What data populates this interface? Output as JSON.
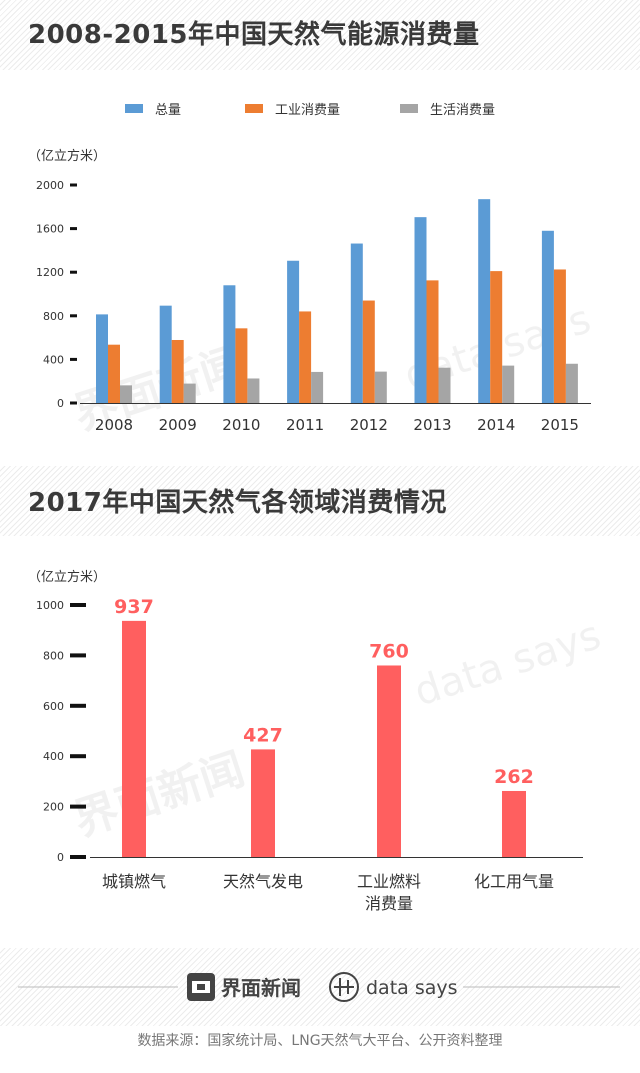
{
  "chart1_title": "2008-2015年中国天然气能源消费量",
  "chart2_title": "2017年中国天然气各领域消费情况",
  "watermark": {
    "jiemian": "界面新闻",
    "datasays": "data says"
  },
  "footer": {
    "logo": "界面新闻",
    "datasays": "data says"
  },
  "source": "数据来源：国家统计局、LNG天然气大平台、公开资料整理",
  "colors": {
    "total": "#5b9bd5",
    "industrial": "#ed7d31",
    "residential": "#a5a5a5",
    "sector": "#ff5f5f"
  },
  "chart_data": [
    {
      "type": "bar",
      "title": "2008-2015年中国天然气能源消费量",
      "ylabel": "（亿立方米）",
      "categories": [
        "2008",
        "2009",
        "2010",
        "2011",
        "2012",
        "2013",
        "2014",
        "2015"
      ],
      "series": [
        {
          "name": "总量",
          "values": [
            813,
            893,
            1080,
            1305,
            1463,
            1705,
            1870,
            1580
          ]
        },
        {
          "name": "工业消费量",
          "values": [
            535,
            578,
            685,
            840,
            940,
            1125,
            1210,
            1225
          ]
        },
        {
          "name": "生活消费量",
          "values": [
            162,
            178,
            225,
            285,
            288,
            324,
            343,
            360
          ]
        }
      ],
      "yticks": [
        0,
        400,
        800,
        1200,
        1600,
        2000
      ],
      "ylim": [
        0,
        2000
      ],
      "legend": "top",
      "grid": false
    },
    {
      "type": "bar",
      "title": "2017年中国天然气各领域消费情况",
      "ylabel": "（亿立方米）",
      "categories": [
        [
          "城镇燃气"
        ],
        [
          "天然气发电"
        ],
        [
          "工业燃料",
          "消费量"
        ],
        [
          "化工用气量"
        ]
      ],
      "values": [
        937,
        427,
        760,
        262
      ],
      "data_labels": [
        "937",
        "427",
        "760",
        "262"
      ],
      "yticks": [
        0,
        200,
        400,
        600,
        800,
        1000
      ],
      "ylim": [
        0,
        1000
      ],
      "grid": false
    }
  ]
}
